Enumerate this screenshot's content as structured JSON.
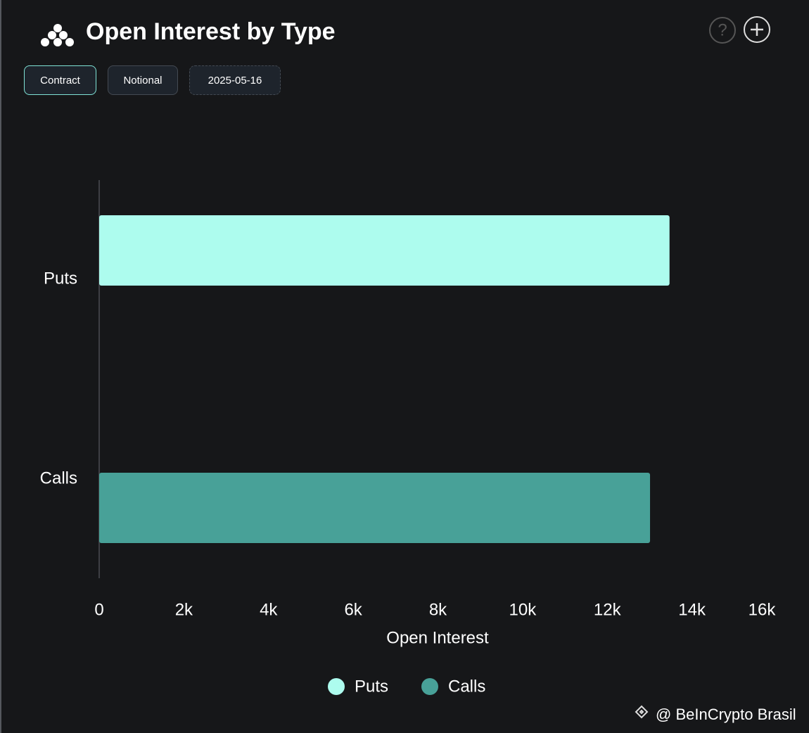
{
  "header": {
    "title": "Open Interest by Type",
    "buttons": [
      "Contract",
      "Notional",
      "2025-05-16"
    ]
  },
  "chart_data": {
    "type": "bar",
    "orientation": "horizontal",
    "categories": [
      "Puts",
      "Calls"
    ],
    "series": [
      {
        "name": "Puts",
        "color": "#adfcee",
        "values": [
          13470,
          null
        ]
      },
      {
        "name": "Calls",
        "color": "#48a198",
        "values": [
          null,
          13010
        ]
      }
    ],
    "x_label": "Open Interest",
    "xlim": [
      0,
      16000
    ],
    "xticks": [
      0,
      {
        "value": 2000,
        "label": "2k"
      },
      {
        "value": 4000,
        "label": "4k"
      },
      {
        "value": 6000,
        "label": "6k"
      },
      {
        "value": 8000,
        "label": "8k"
      },
      {
        "value": 10000,
        "label": "10k"
      },
      {
        "value": 12000,
        "label": "12k"
      },
      {
        "value": 14000,
        "label": "14k"
      },
      {
        "value": 16000,
        "label": "16k"
      }
    ],
    "grid": false,
    "legend": "bottom"
  },
  "watermark": "@ BeInCrypto Brasil"
}
